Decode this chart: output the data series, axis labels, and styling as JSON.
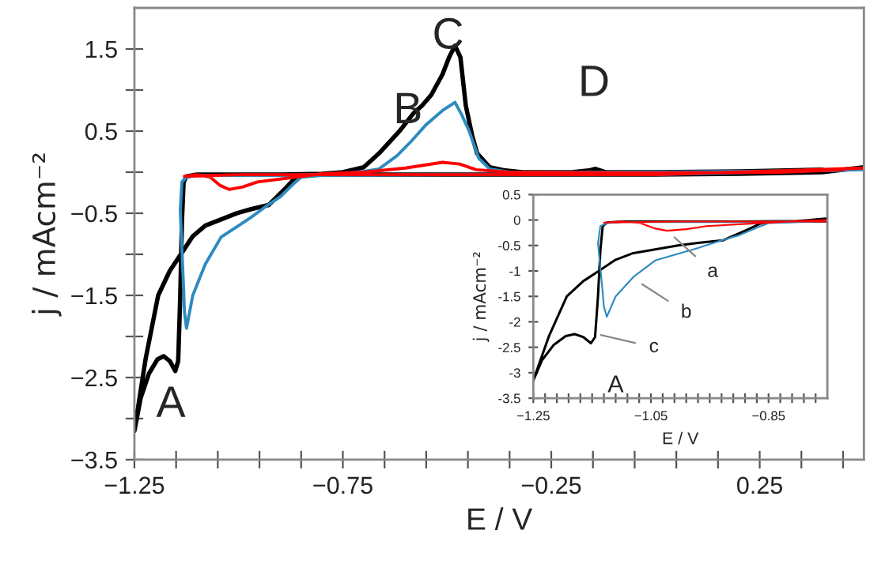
{
  "chart_data": [
    {
      "type": "line",
      "xlabel": "E / V",
      "ylabel": "j / mAcm⁻²",
      "xlim": [
        -1.25,
        0.5
      ],
      "ylim": [
        -3.5,
        2.0
      ],
      "xticks": [
        {
          "value": -1.25,
          "label": "−1.25"
        },
        {
          "value": -1.15,
          "label": null
        },
        {
          "value": -1.05,
          "label": null
        },
        {
          "value": -0.95,
          "label": null
        },
        {
          "value": -0.85,
          "label": null
        },
        {
          "value": -0.75,
          "label": "−0.75"
        },
        {
          "value": -0.65,
          "label": null
        },
        {
          "value": -0.55,
          "label": null
        },
        {
          "value": -0.45,
          "label": null
        },
        {
          "value": -0.35,
          "label": null
        },
        {
          "value": -0.25,
          "label": "−0.25"
        },
        {
          "value": -0.15,
          "label": null
        },
        {
          "value": -0.05,
          "label": null
        },
        {
          "value": 0.05,
          "label": null
        },
        {
          "value": 0.15,
          "label": null
        },
        {
          "value": 0.25,
          "label": "0.25"
        },
        {
          "value": 0.35,
          "label": null
        },
        {
          "value": 0.45,
          "label": null
        }
      ],
      "yticks": [
        {
          "value": -3.5,
          "label": "−3.5"
        },
        {
          "value": -3.0,
          "label": null
        },
        {
          "value": -2.5,
          "label": "−2.5"
        },
        {
          "value": -2.0,
          "label": null
        },
        {
          "value": -1.5,
          "label": "−1.5"
        },
        {
          "value": -1.0,
          "label": null
        },
        {
          "value": -0.5,
          "label": "−0.5"
        },
        {
          "value": 0.0,
          "label": null
        },
        {
          "value": 0.5,
          "label": "0.5"
        },
        {
          "value": 1.0,
          "label": null
        },
        {
          "value": 1.5,
          "label": "1.5"
        }
      ],
      "grid": false,
      "legend": false,
      "marker": "none",
      "line_style": "solid",
      "series": [
        {
          "color": "#000000",
          "x": [
            0.5,
            0.4,
            0.2,
            0.0,
            -0.3,
            -0.5,
            -0.7,
            -0.8,
            -0.85,
            -0.864,
            -0.89,
            -0.928,
            -0.97,
            -1.004,
            -1.08,
            -1.11,
            -1.136,
            -1.165,
            -1.193,
            -1.223,
            -1.25,
            -1.235,
            -1.215,
            -1.195,
            -1.18,
            -1.165,
            -1.152,
            -1.145,
            -1.14,
            -1.136,
            -1.132,
            -1.125,
            -1.1,
            -1.0,
            -0.9,
            -0.8,
            -0.75,
            -0.7,
            -0.663,
            -0.614,
            -0.58,
            -0.56,
            -0.538,
            -0.511,
            -0.495,
            -0.481,
            -0.468,
            -0.455,
            -0.44,
            -0.428,
            -0.398,
            -0.36,
            -0.32,
            -0.2,
            -0.16,
            -0.144,
            -0.12,
            0.0,
            0.2,
            0.4
          ],
          "values": [
            0.06,
            0.0,
            -0.02,
            -0.03,
            -0.03,
            -0.03,
            -0.03,
            -0.03,
            -0.04,
            -0.07,
            -0.21,
            -0.4,
            -0.45,
            -0.5,
            -0.65,
            -0.78,
            -0.98,
            -1.2,
            -1.5,
            -2.27,
            -3.15,
            -2.75,
            -2.45,
            -2.28,
            -2.24,
            -2.3,
            -2.42,
            -2.3,
            -1.5,
            -0.6,
            -0.12,
            -0.05,
            -0.03,
            -0.03,
            -0.03,
            -0.02,
            0.0,
            0.06,
            0.23,
            0.5,
            0.72,
            0.81,
            0.94,
            1.19,
            1.4,
            1.54,
            1.4,
            0.81,
            0.45,
            0.23,
            0.06,
            0.02,
            0.0,
            0.0,
            0.02,
            0.04,
            0.0,
            0.0,
            0.01,
            0.03
          ]
        },
        {
          "color": "#2e8bc0",
          "x": [
            0.5,
            0.0,
            -0.5,
            -0.8,
            -0.85,
            -0.87,
            -0.9,
            -0.93,
            -0.97,
            -1.0,
            -1.042,
            -1.08,
            -1.11,
            -1.125,
            -1.13,
            -1.132,
            -1.14,
            -1.136,
            -1.125,
            -1.1,
            -0.9,
            -0.75,
            -0.7,
            -0.663,
            -0.62,
            -0.587,
            -0.55,
            -0.511,
            -0.481,
            -0.465,
            -0.447,
            -0.424,
            -0.398,
            -0.35,
            0.0,
            0.45
          ],
          "values": [
            0.03,
            -0.03,
            -0.03,
            -0.04,
            -0.06,
            -0.15,
            -0.3,
            -0.4,
            -0.55,
            -0.65,
            -0.79,
            -1.12,
            -1.5,
            -1.9,
            -1.7,
            -1.42,
            -0.46,
            -0.12,
            -0.06,
            -0.04,
            -0.04,
            -0.02,
            0.01,
            0.04,
            0.2,
            0.37,
            0.58,
            0.75,
            0.85,
            0.7,
            0.5,
            0.17,
            0.04,
            0.0,
            0.0,
            0.02
          ]
        },
        {
          "color": "#ff0000",
          "x": [
            0.5,
            0.0,
            -0.5,
            -1.0,
            -1.13,
            -1.1,
            -1.068,
            -1.045,
            -1.023,
            -0.99,
            -0.955,
            -0.864,
            -0.8,
            -0.7,
            -0.6,
            -0.511,
            -0.47,
            -0.43,
            -0.35,
            0.0,
            0.3,
            0.45
          ],
          "values": [
            0.05,
            -0.03,
            -0.03,
            -0.03,
            -0.05,
            -0.03,
            -0.06,
            -0.16,
            -0.21,
            -0.18,
            -0.12,
            -0.06,
            -0.02,
            0.0,
            0.05,
            0.12,
            0.1,
            0.03,
            0.0,
            -0.01,
            0.0,
            0.03
          ]
        }
      ],
      "annotations": [
        "A",
        "B",
        "C",
        "D"
      ]
    },
    {
      "type": "line",
      "xlabel": "E / V",
      "ylabel": "j / mAcm⁻²",
      "xlim": [
        -1.25,
        -0.75
      ],
      "ylim": [
        -3.5,
        0.5
      ],
      "xticks": [
        {
          "value": -1.25,
          "label": "−1.25"
        },
        {
          "value": -1.23,
          "label": null
        },
        {
          "value": -1.21,
          "label": null
        },
        {
          "value": -1.19,
          "label": null
        },
        {
          "value": -1.17,
          "label": null
        },
        {
          "value": -1.15,
          "label": null
        },
        {
          "value": -1.13,
          "label": null
        },
        {
          "value": -1.11,
          "label": null
        },
        {
          "value": -1.09,
          "label": null
        },
        {
          "value": -1.07,
          "label": null
        },
        {
          "value": -1.05,
          "label": "−1.05"
        },
        {
          "value": -1.03,
          "label": null
        },
        {
          "value": -1.01,
          "label": null
        },
        {
          "value": -0.99,
          "label": null
        },
        {
          "value": -0.97,
          "label": null
        },
        {
          "value": -0.95,
          "label": null
        },
        {
          "value": -0.93,
          "label": null
        },
        {
          "value": -0.91,
          "label": null
        },
        {
          "value": -0.89,
          "label": null
        },
        {
          "value": -0.87,
          "label": null
        },
        {
          "value": -0.85,
          "label": "−0.85"
        },
        {
          "value": -0.83,
          "label": null
        },
        {
          "value": -0.81,
          "label": null
        },
        {
          "value": -0.79,
          "label": null
        },
        {
          "value": -0.77,
          "label": null
        }
      ],
      "yticks": [
        {
          "value": 0.5,
          "label": "0.5"
        },
        {
          "value": 0,
          "label": "0"
        },
        {
          "value": -0.5,
          "label": "-0.5"
        },
        {
          "value": -1,
          "label": "-1"
        },
        {
          "value": -1.5,
          "label": "-1.5"
        },
        {
          "value": -2,
          "label": "-2"
        },
        {
          "value": -2.5,
          "label": "-2.5"
        },
        {
          "value": -3,
          "label": "-3"
        },
        {
          "value": -3.5,
          "label": "-3.5"
        }
      ],
      "grid": false,
      "legend": false,
      "marker": "none",
      "line_style": "solid",
      "series": [
        {
          "color": "#000000",
          "x": [
            -0.75,
            -0.8,
            -0.85,
            -0.864,
            -0.89,
            -0.928,
            -0.97,
            -1.004,
            -1.08,
            -1.11,
            -1.136,
            -1.165,
            -1.193,
            -1.223,
            -1.25,
            -1.235,
            -1.215,
            -1.195,
            -1.18,
            -1.165,
            -1.152,
            -1.145,
            -1.14,
            -1.136,
            -1.132,
            -1.125,
            -1.1,
            -1.0,
            -0.9,
            -0.8,
            -0.75
          ],
          "values": [
            -0.03,
            -0.03,
            -0.04,
            -0.07,
            -0.21,
            -0.4,
            -0.45,
            -0.5,
            -0.65,
            -0.78,
            -0.98,
            -1.2,
            -1.5,
            -2.27,
            -3.15,
            -2.75,
            -2.45,
            -2.28,
            -2.24,
            -2.3,
            -2.42,
            -2.3,
            -1.5,
            -0.6,
            -0.12,
            -0.05,
            -0.03,
            -0.03,
            -0.03,
            -0.02,
            0.03
          ]
        },
        {
          "color": "#2e8bc0",
          "x": [
            -0.75,
            -0.8,
            -0.85,
            -0.87,
            -0.9,
            -0.93,
            -0.97,
            -1.0,
            -1.042,
            -1.08,
            -1.11,
            -1.125,
            -1.13,
            -1.132,
            -1.14,
            -1.136,
            -1.125,
            -1.1,
            -0.9,
            -0.75
          ],
          "values": [
            -0.03,
            -0.04,
            -0.06,
            -0.15,
            -0.3,
            -0.4,
            -0.55,
            -0.65,
            -0.79,
            -1.12,
            -1.5,
            -1.9,
            -1.7,
            -1.42,
            -0.46,
            -0.12,
            -0.06,
            -0.04,
            -0.04,
            -0.02
          ]
        },
        {
          "color": "#ff0000",
          "x": [
            -0.75,
            -1.0,
            -1.13,
            -1.1,
            -1.068,
            -1.045,
            -1.023,
            -0.99,
            -0.955,
            -0.864,
            -0.8,
            -0.75
          ],
          "values": [
            -0.03,
            -0.03,
            -0.05,
            -0.03,
            -0.06,
            -0.16,
            -0.21,
            -0.18,
            -0.12,
            -0.06,
            -0.02,
            0.0
          ]
        }
      ],
      "annotations": [
        "A",
        "a",
        "b",
        "c"
      ]
    }
  ]
}
